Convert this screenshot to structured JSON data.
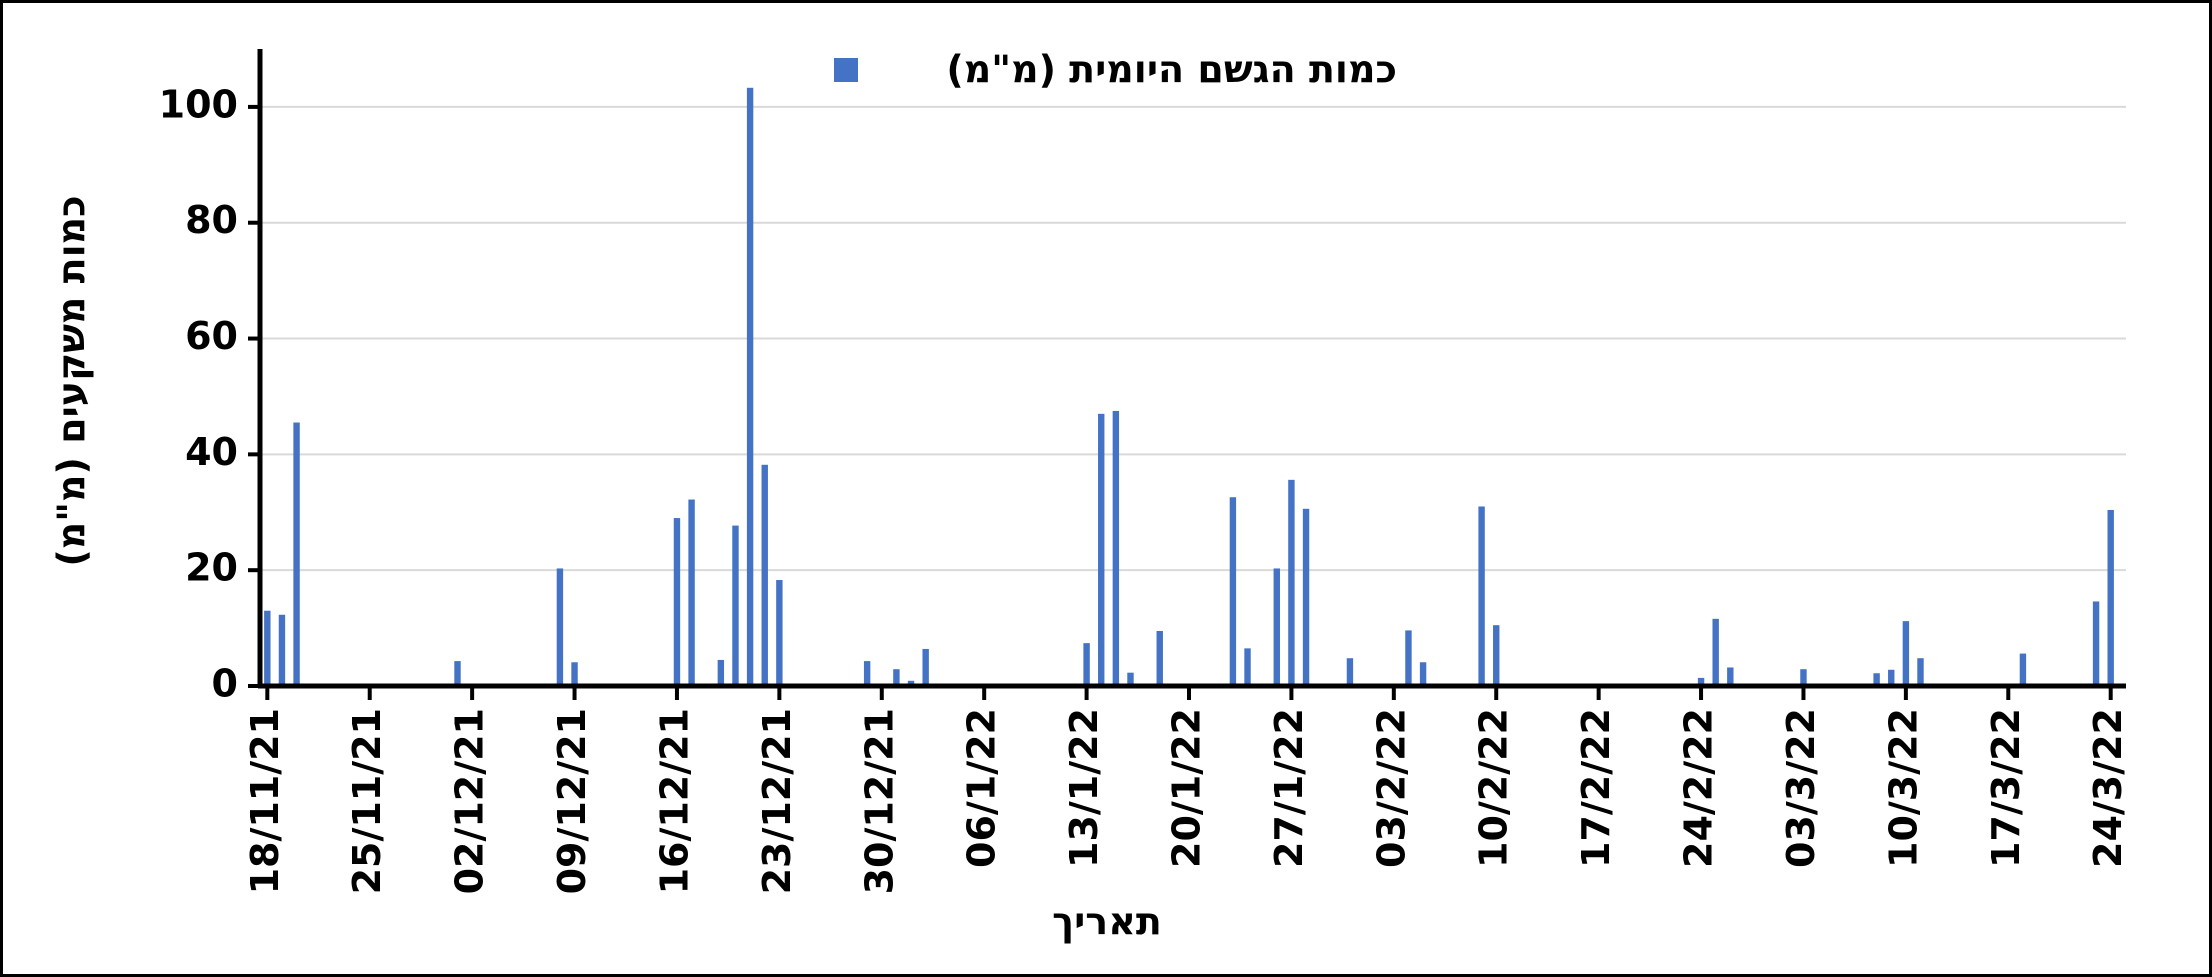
{
  "chart_data": {
    "type": "bar",
    "legend_title": null,
    "x_label": "תאריך",
    "y_label": "כמות משקעים (מ\"מ)",
    "categories": [
      "18/11/21",
      null,
      null,
      null,
      null,
      null,
      null,
      "25/11/21",
      null,
      null,
      null,
      null,
      null,
      null,
      "02/12/21",
      null,
      null,
      null,
      null,
      null,
      null,
      "09/12/21",
      null,
      null,
      null,
      null,
      null,
      null,
      "16/12/21",
      null,
      null,
      null,
      null,
      null,
      null,
      "23/12/21",
      null,
      null,
      null,
      null,
      null,
      null,
      "30/12/21",
      null,
      null,
      null,
      null,
      null,
      null,
      "06/1/22",
      null,
      null,
      null,
      null,
      null,
      null,
      "13/1/22",
      null,
      null,
      null,
      null,
      null,
      null,
      "20/1/22",
      null,
      null,
      null,
      null,
      null,
      null,
      "27/1/22",
      null,
      null,
      null,
      null,
      null,
      null,
      "03/2/22",
      null,
      null,
      null,
      null,
      null,
      null,
      "10/2/22",
      null,
      null,
      null,
      null,
      null,
      null,
      "17/2/22",
      null,
      null,
      null,
      null,
      null,
      null,
      "24/2/22",
      null,
      null,
      null,
      null,
      null,
      null,
      "03/3/22",
      null,
      null,
      null,
      null,
      null,
      null,
      "10/3/22",
      null,
      null,
      null,
      null,
      null,
      null,
      "17/3/22",
      null,
      null,
      null,
      null,
      null,
      null,
      "24/3/22"
    ],
    "series": [
      {
        "name": "כמות הגשם היומית (מ\"מ)",
        "color": "#4472c4",
        "values": [
          13,
          12.3,
          45.5,
          0,
          0,
          0,
          0,
          0,
          0,
          0,
          0,
          0,
          0,
          4.3,
          0,
          0,
          0,
          0,
          0,
          0,
          20.3,
          4.1,
          0,
          0,
          0,
          0,
          0,
          0,
          29,
          32.2,
          0,
          4.5,
          27.7,
          103.3,
          38.2,
          18.3,
          0,
          0,
          0,
          0,
          0,
          4.3,
          0,
          2.9,
          0.9,
          6.4,
          0,
          0,
          0,
          0,
          0,
          0,
          0,
          0,
          0,
          0,
          7.4,
          47,
          47.5,
          2.3,
          0,
          9.5,
          0,
          0,
          0,
          0,
          32.6,
          6.5,
          0,
          20.3,
          35.6,
          30.6,
          0,
          0,
          4.8,
          0,
          0,
          0,
          9.6,
          4.1,
          0,
          0,
          0,
          31,
          10.5,
          0,
          0,
          0,
          0,
          0,
          0,
          0,
          0,
          0,
          0,
          0,
          0,
          0,
          1.4,
          11.6,
          3.2,
          0,
          0,
          0,
          0,
          2.9,
          0,
          0,
          0,
          0,
          2.2,
          2.8,
          11.2,
          4.8,
          0,
          0,
          0,
          0,
          0,
          0,
          5.6,
          0,
          0,
          0,
          0,
          14.6,
          30.4
        ]
      }
    ],
    "ylim": [
      0,
      110
    ],
    "yticks": [
      0,
      20,
      40,
      60,
      80,
      100
    ],
    "grid": true
  }
}
